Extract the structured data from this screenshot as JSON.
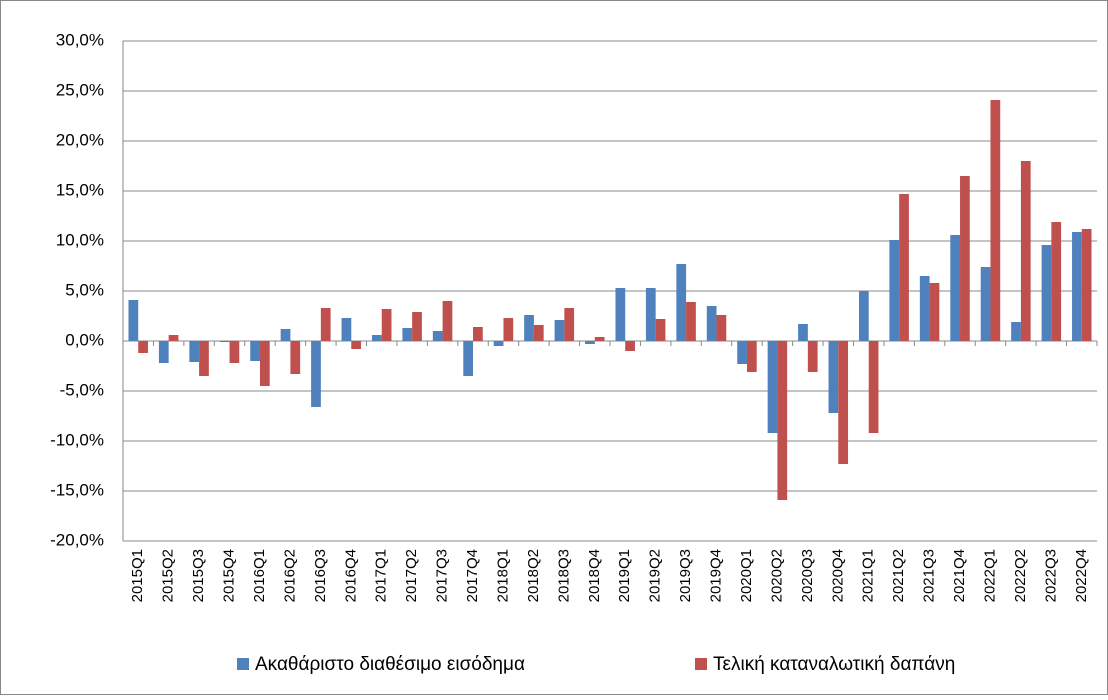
{
  "chart_data": {
    "type": "bar",
    "categories": [
      "2015Q1",
      "2015Q2",
      "2015Q3",
      "2015Q4",
      "2016Q1",
      "2016Q2",
      "2016Q3",
      "2016Q4",
      "2017Q1",
      "2017Q2",
      "2017Q3",
      "2017Q4",
      "2018Q1",
      "2018Q2",
      "2018Q3",
      "2018Q4",
      "2019Q1",
      "2019Q2",
      "2019Q3",
      "2019Q4",
      "2020Q1",
      "2020Q2",
      "2020Q3",
      "2020Q4",
      "2021Q1",
      "2021Q2",
      "2021Q3",
      "2021Q4",
      "2022Q1",
      "2022Q2",
      "2022Q3",
      "2022Q4"
    ],
    "series": [
      {
        "name": "Ακαθάριστο διαθέσιμο εισόδημα",
        "color": "#4f81bd",
        "values": [
          4.1,
          -2.2,
          -2.1,
          -0.1,
          -2.0,
          1.2,
          -6.6,
          2.3,
          0.6,
          1.3,
          1.0,
          -3.5,
          -0.5,
          2.6,
          2.1,
          -0.3,
          5.3,
          5.3,
          7.7,
          3.5,
          -2.3,
          -9.2,
          1.7,
          -7.2,
          5.0,
          10.1,
          6.5,
          10.6,
          7.4,
          1.9,
          9.6,
          10.9
        ]
      },
      {
        "name": "Τελική καταναλωτική δαπάνη",
        "color": "#c0504d",
        "values": [
          -1.2,
          0.6,
          -3.5,
          -2.2,
          -4.5,
          -3.3,
          3.3,
          -0.8,
          3.2,
          2.9,
          4.0,
          1.4,
          2.3,
          1.6,
          3.3,
          0.4,
          -1.0,
          2.2,
          3.9,
          2.6,
          -3.1,
          -15.9,
          -3.1,
          -12.3,
          -9.2,
          14.7,
          5.8,
          16.5,
          24.1,
          18.0,
          11.9,
          11.2
        ]
      }
    ],
    "ylim": [
      -20,
      30
    ],
    "yticks": [
      {
        "value": -20,
        "label": "-20,0%"
      },
      {
        "value": -15,
        "label": "-15,0%"
      },
      {
        "value": -10,
        "label": "-10,0%"
      },
      {
        "value": -5,
        "label": "-5,0%"
      },
      {
        "value": 0,
        "label": "0,0%"
      },
      {
        "value": 5,
        "label": "5,0%"
      },
      {
        "value": 10,
        "label": "10,0%"
      },
      {
        "value": 15,
        "label": "15,0%"
      },
      {
        "value": 20,
        "label": "20,0%"
      },
      {
        "value": 25,
        "label": "25,0%"
      },
      {
        "value": 30,
        "label": "30,0%"
      }
    ],
    "grid": true,
    "legend": "bottom"
  }
}
